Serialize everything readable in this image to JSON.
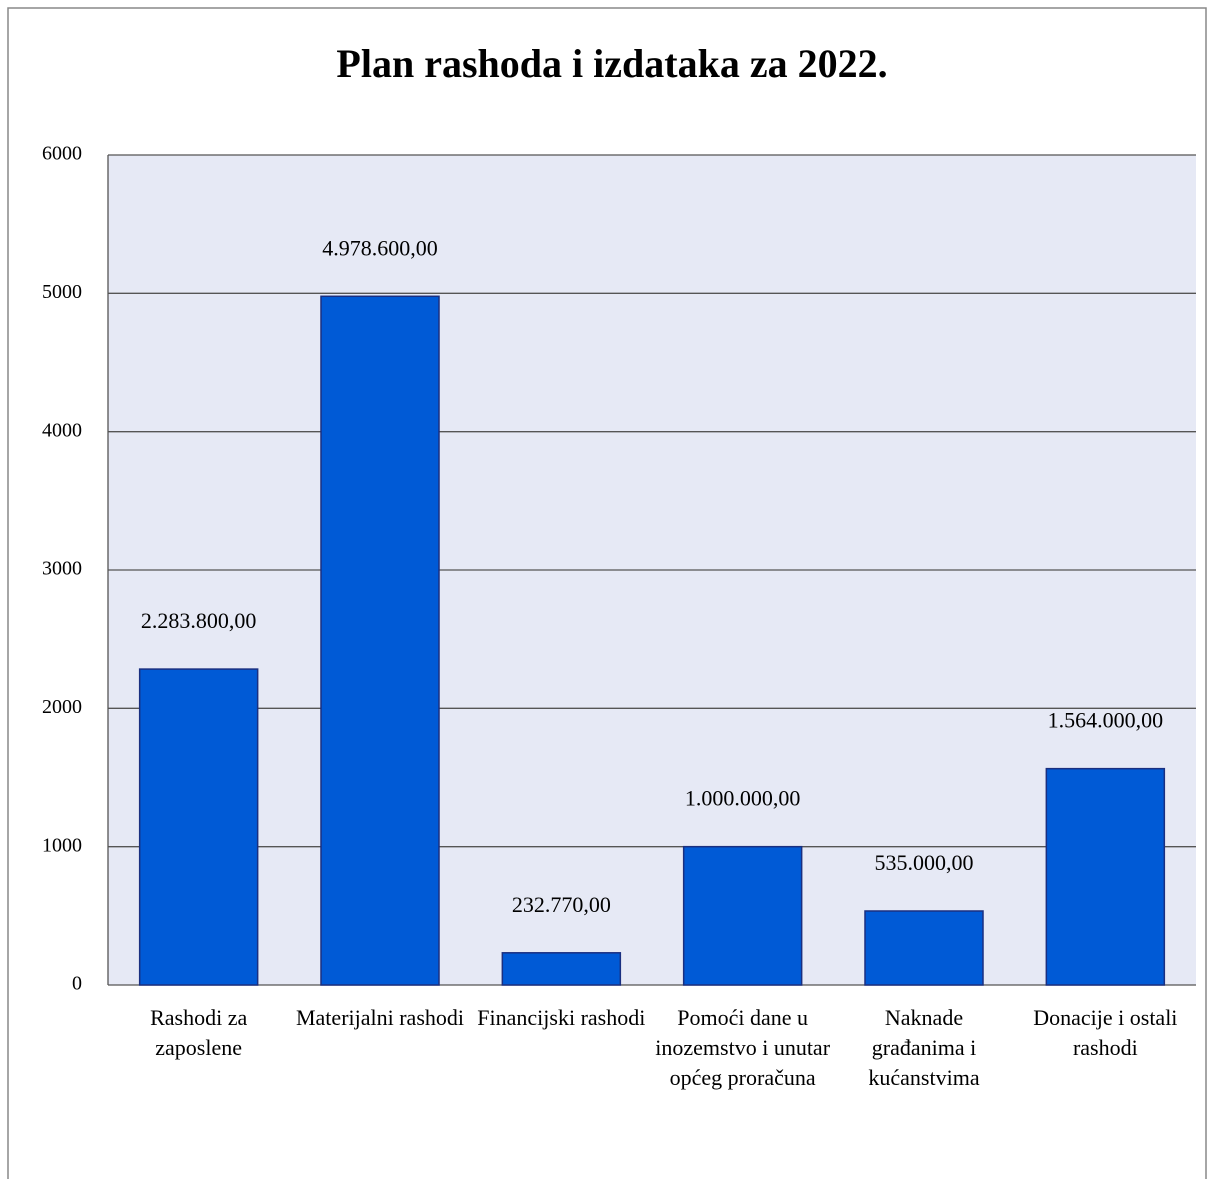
{
  "chart_data": {
    "type": "bar",
    "title": "Plan rashoda i izdataka za 2022.",
    "categories": [
      "Rashodi za zaposlene",
      "Materijalni rashodi",
      "Financijski rashodi",
      "Pomoći dane u inozemstvo i unutar općeg proračuna",
      "Naknade građanima i kućanstvima",
      "Donacije i ostali rashodi"
    ],
    "values": [
      2283.8,
      4978.6,
      232.77,
      1000,
      535,
      1564
    ],
    "value_labels": [
      "2.283.800,00",
      "4.978.600,00",
      "232.770,00",
      "1.000.000,00",
      "535.000,00",
      "1.564.000,00"
    ],
    "color": "#005ad6",
    "ylim": [
      0,
      6000
    ],
    "yticks": [
      0,
      1000,
      2000,
      3000,
      4000,
      5000,
      6000
    ],
    "grid": true
  }
}
